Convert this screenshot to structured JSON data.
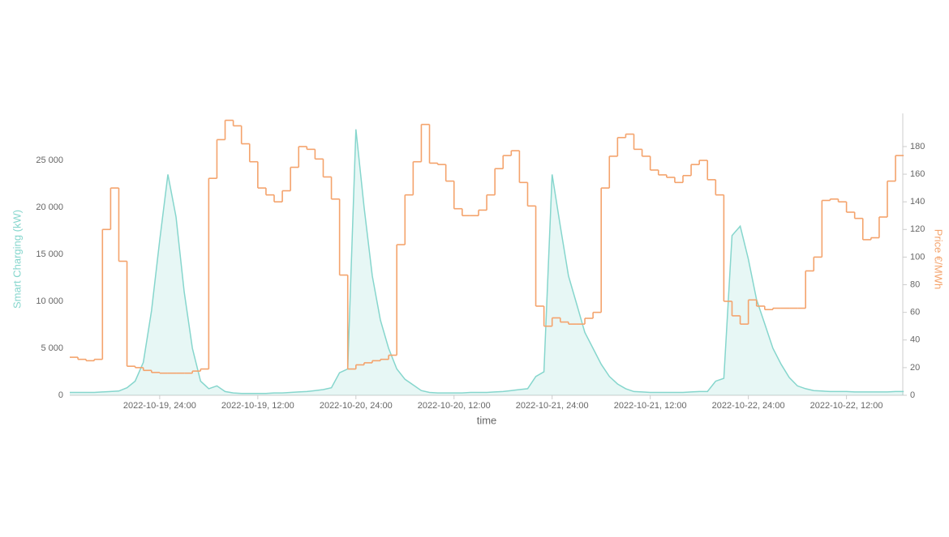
{
  "chart_data": {
    "type": "line",
    "x_label": "time",
    "categories": [
      null,
      null,
      null,
      null,
      null,
      null,
      null,
      null,
      null,
      null,
      null,
      "2022-10-19, 24:00",
      null,
      null,
      null,
      null,
      null,
      null,
      null,
      null,
      null,
      null,
      null,
      "2022-10-19, 12:00",
      null,
      null,
      null,
      null,
      null,
      null,
      null,
      null,
      null,
      null,
      null,
      "2022-10-20, 24:00",
      null,
      null,
      null,
      null,
      null,
      null,
      null,
      null,
      null,
      null,
      null,
      "2022-10-20, 12:00",
      null,
      null,
      null,
      null,
      null,
      null,
      null,
      null,
      null,
      null,
      null,
      "2022-10-21, 24:00",
      null,
      null,
      null,
      null,
      null,
      null,
      null,
      null,
      null,
      null,
      null,
      "2022-10-21, 12:00",
      null,
      null,
      null,
      null,
      null,
      null,
      null,
      null,
      null,
      null,
      null,
      "2022-10-22, 24:00",
      null,
      null,
      null,
      null,
      null,
      null,
      null,
      null,
      null,
      null,
      null,
      "2022-10-22, 12:00",
      null,
      null,
      null,
      null,
      null,
      null,
      null
    ],
    "y_label": "Smart Charging (kW)",
    "y2_label": "Price €/MWh",
    "ylim": [
      0,
      30000
    ],
    "yticks": [
      0,
      {
        "value": 5000,
        "label": "5 000"
      },
      {
        "value": 10000,
        "label": "10 000"
      },
      {
        "value": 15000,
        "label": "15 000"
      },
      {
        "value": 20000,
        "label": "20 000"
      },
      {
        "value": 25000,
        "label": "25 000"
      }
    ],
    "y2lim": [
      0,
      204
    ],
    "y2ticks": [
      0,
      20,
      40,
      60,
      80,
      100,
      120,
      140,
      160,
      180
    ],
    "series": [
      {
        "name": "Smart Charging (kW)",
        "color": "#86d6cd",
        "area": true,
        "values": [
          300,
          300,
          300,
          300,
          350,
          400,
          450,
          800,
          1500,
          3500,
          9000,
          16500,
          23500,
          19000,
          11000,
          5000,
          1500,
          700,
          1000,
          400,
          250,
          200,
          200,
          200,
          200,
          250,
          250,
          300,
          350,
          400,
          500,
          600,
          800,
          2400,
          2800,
          28300,
          20000,
          12700,
          8000,
          5000,
          2800,
          1700,
          1100,
          500,
          300,
          250,
          250,
          250,
          250,
          300,
          300,
          300,
          350,
          400,
          500,
          600,
          700,
          2000,
          2500,
          23500,
          18000,
          12700,
          9700,
          6700,
          5000,
          3300,
          2000,
          1200,
          700,
          400,
          350,
          300,
          300,
          300,
          300,
          300,
          350,
          400,
          400,
          1500,
          1800,
          17000,
          18000,
          14500,
          10200,
          7600,
          5000,
          3300,
          1900,
          1000,
          700,
          500,
          450,
          400,
          400,
          400,
          350,
          350,
          350,
          350,
          350,
          400,
          400
        ]
      },
      {
        "name": "Price €/MWh",
        "color": "#f4a36c",
        "axis": "y2",
        "step": true,
        "values": [
          27.5,
          26,
          25,
          26,
          120,
          150,
          97,
          21,
          20,
          18,
          16.5,
          16,
          16,
          16,
          16,
          17.5,
          19,
          157,
          185,
          199,
          195,
          182,
          169,
          150,
          145,
          140,
          148,
          165,
          180,
          178,
          171,
          158,
          142,
          87,
          19,
          22,
          23.5,
          25,
          26,
          29,
          109,
          145,
          169,
          196,
          168,
          167,
          155,
          135,
          130,
          130,
          134,
          145,
          164,
          173.5,
          177,
          154,
          137,
          64.5,
          50,
          56,
          53,
          51.5,
          51.5,
          55.7,
          60,
          150,
          173,
          186.5,
          189,
          178,
          173,
          163,
          159.5,
          157.7,
          154,
          159,
          167,
          170,
          156,
          145,
          68,
          57.5,
          51.5,
          69,
          64.5,
          62,
          63,
          63,
          63,
          63,
          90,
          100,
          141,
          142,
          140,
          132.5,
          128,
          112.6,
          114,
          129,
          155,
          173.5,
          173.5
        ]
      }
    ]
  }
}
